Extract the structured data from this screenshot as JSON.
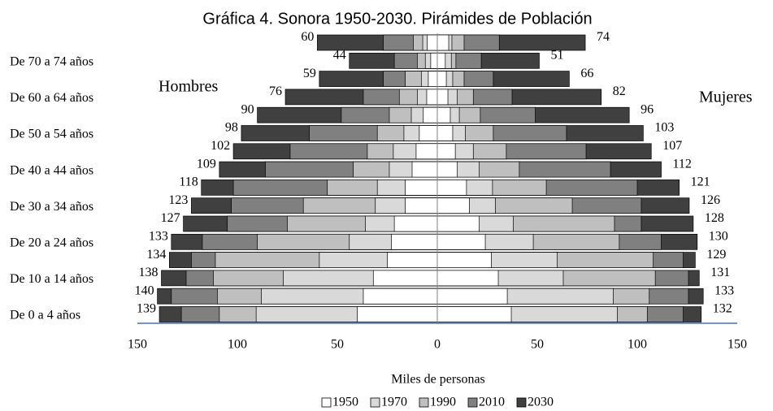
{
  "chart_data": {
    "type": "population_pyramid",
    "title": "Gráfica 4. Sonora 1950-2030. Pirámides de Población",
    "left_label": "Hombres",
    "right_label": "Mujeres",
    "x_label": "Miles de personas",
    "categories": [
      "De 0 a 4 años",
      null,
      "De 10 a 14 años",
      null,
      "De 20 a 24 años",
      null,
      "De 30 a 34 años",
      null,
      "De 40 a 44 años",
      null,
      "De 50 a 54 años",
      null,
      "De 60 a 64 años",
      null,
      "De 70 a 74 años",
      null
    ],
    "xlim": [
      -150,
      150
    ],
    "xticks": [
      {
        "value": -150,
        "label": "150"
      },
      {
        "value": -100,
        "label": "100"
      },
      {
        "value": -50,
        "label": "50"
      },
      0,
      50,
      100,
      150
    ],
    "series": [
      {
        "name": "1950",
        "color": "#ffffff",
        "men": [
          40,
          37,
          32,
          25,
          23,
          21.5,
          16,
          16,
          12.6,
          10.6,
          9,
          7,
          5.3,
          4.5,
          3.3,
          5
        ],
        "women": [
          37,
          35,
          30.5,
          27,
          24,
          21,
          16,
          14.6,
          10,
          9,
          7.7,
          6.5,
          5.3,
          4.5,
          4,
          5.7
        ]
      },
      {
        "name": "1970",
        "color": "#d9d9d9",
        "men": [
          90.6,
          88,
          77,
          59,
          44,
          36,
          31,
          30,
          24,
          22,
          16.7,
          13,
          10,
          8,
          6,
          7.3
        ],
        "women": [
          90,
          88,
          63,
          60,
          48,
          38,
          29,
          27.6,
          21,
          18,
          14,
          11,
          10,
          7.7,
          7,
          7.3
        ]
      },
      {
        "name": "1990",
        "color": "#bfbfbf",
        "men": [
          109,
          110,
          112,
          111,
          90,
          75,
          67,
          55,
          42,
          35,
          30,
          24,
          19,
          16,
          10,
          12
        ],
        "women": [
          105,
          106,
          109,
          108,
          91,
          88.6,
          67.5,
          54.5,
          41,
          34.5,
          28,
          21.5,
          18,
          13.4,
          9.3,
          13.4
        ]
      },
      {
        "name": "2010",
        "color": "#808080",
        "men": [
          128,
          133,
          125.6,
          123,
          117.5,
          105,
          103,
          102,
          86,
          73.6,
          64,
          48,
          37,
          27,
          21.5,
          27
        ],
        "women": [
          123,
          125.6,
          125.6,
          123,
          112,
          102,
          102,
          100,
          86.6,
          74.4,
          64.6,
          49,
          37.4,
          28,
          22,
          31
        ]
      },
      {
        "name": "2030",
        "color": "#404040",
        "men": [
          139,
          140,
          138,
          134,
          133,
          127,
          123,
          118,
          109,
          102,
          98,
          90,
          76,
          59,
          44,
          60
        ],
        "women": [
          132,
          133,
          131,
          129,
          130,
          128,
          126,
          121,
          112,
          107,
          103,
          96,
          82,
          66,
          51,
          74
        ]
      }
    ]
  }
}
